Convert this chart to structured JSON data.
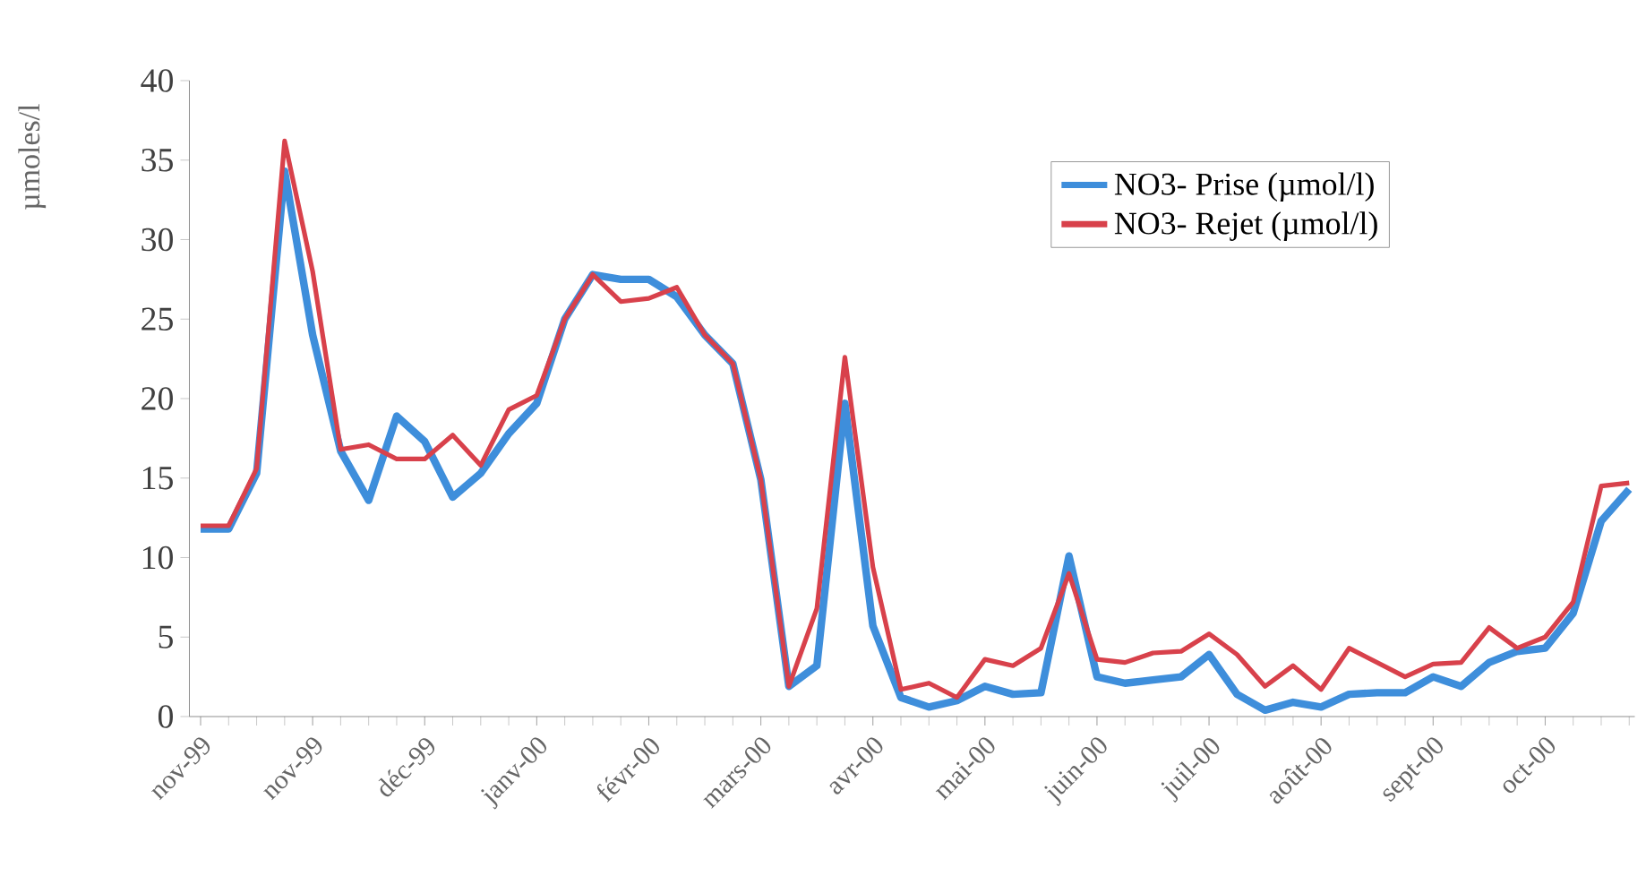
{
  "chart_data": {
    "type": "line",
    "ylabel": "µmoles/l",
    "categories": [
      "nov-99",
      null,
      null,
      null,
      "nov-99",
      null,
      null,
      null,
      "déc-99",
      null,
      null,
      null,
      "janv-00",
      null,
      null,
      null,
      "févr-00",
      null,
      null,
      null,
      "mars-00",
      null,
      null,
      null,
      "avr-00",
      null,
      null,
      null,
      "mai-00",
      null,
      null,
      null,
      "juin-00",
      null,
      null,
      null,
      "juil-00",
      null,
      null,
      null,
      "août-00",
      null,
      null,
      null,
      "sept-00",
      null,
      null,
      null,
      "oct-00",
      null,
      null,
      null
    ],
    "series": [
      {
        "name": "NO3- Prise (µmol/l)",
        "color": "#3e8edb",
        "values": [
          11.8,
          11.8,
          15.3,
          34.3,
          24,
          16.7,
          13.6,
          18.9,
          17.3,
          13.8,
          15.3,
          17.8,
          19.7,
          25,
          27.8,
          27.5,
          27.5,
          26.4,
          24,
          22.2,
          14.9,
          1.9,
          3.2,
          19.7,
          5.7,
          1.2,
          0.6,
          1.0,
          1.9,
          1.4,
          1.5,
          10.1,
          2.5,
          2.1,
          2.3,
          2.5,
          3.9,
          1.4,
          0.4,
          0.9,
          0.6,
          1.4,
          1.5,
          1.5,
          2.5,
          1.9,
          3.4,
          4.1,
          4.3,
          6.5,
          12.3,
          14.3
        ]
      },
      {
        "name": "NO3- Rejet (µmol/l)",
        "color": "#d8414b",
        "values": [
          12.0,
          12.0,
          15.6,
          36.2,
          28,
          16.8,
          17.1,
          16.2,
          16.2,
          17.7,
          15.8,
          19.3,
          20.2,
          25,
          27.8,
          26.1,
          26.3,
          27,
          24,
          22.2,
          14.9,
          1.9,
          6.8,
          22.6,
          9.4,
          1.7,
          2.1,
          1.2,
          3.6,
          3.2,
          4.3,
          9.0,
          3.6,
          3.4,
          4.0,
          4.1,
          5.2,
          3.9,
          1.9,
          3.2,
          1.7,
          4.3,
          3.4,
          2.5,
          3.3,
          3.4,
          5.6,
          4.3,
          5.0,
          7.2,
          14.5,
          14.7
        ]
      }
    ],
    "ylim": [
      0,
      40
    ],
    "yticks": [
      0,
      5,
      10,
      15,
      20,
      25,
      30,
      35,
      40
    ],
    "legend": "top right",
    "grid": false,
    "marker": "none",
    "line_style": "solid"
  }
}
